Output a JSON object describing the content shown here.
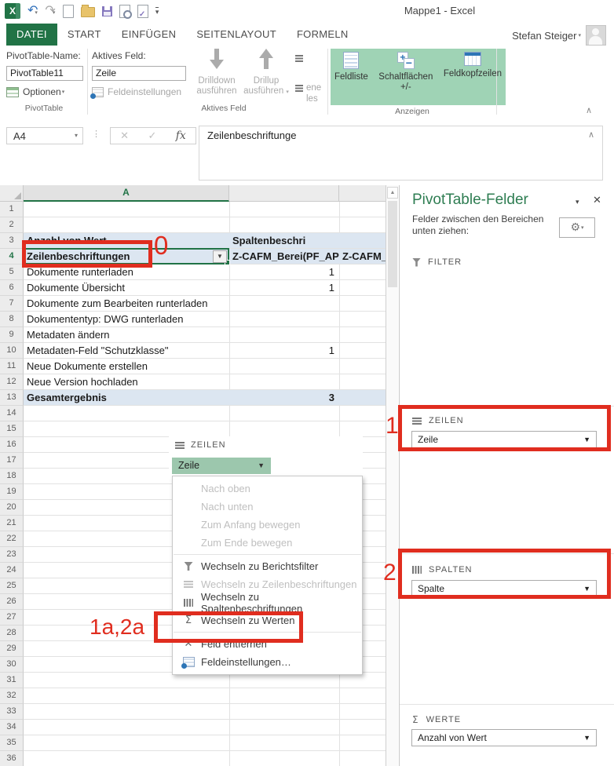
{
  "titlebar": {
    "title": "Mappe1 - Excel",
    "user": "Stefan Steiger",
    "qat_icons": [
      "excel-logo",
      "undo",
      "redo",
      "new-document",
      "open-folder",
      "save",
      "print-preview",
      "edit-document",
      "more"
    ]
  },
  "tabs": [
    {
      "label": "DATEI",
      "active": true
    },
    {
      "label": "START",
      "active": false
    },
    {
      "label": "EINFÜGEN",
      "active": false
    },
    {
      "label": "SEITENLAYOUT",
      "active": false
    },
    {
      "label": "FORMELN",
      "active": false
    }
  ],
  "ribbon": {
    "pivot": {
      "name_label": "PivotTable-Name:",
      "name_value": "PivotTable11",
      "options": "Optionen",
      "group": "PivotTable"
    },
    "active_field": {
      "label": "Aktives Feld:",
      "value": "Zeile",
      "settings": "Feldeinstellungen",
      "drilldown": "Drilldown ausführen",
      "drillup": "Drillup ausführen",
      "group": "Aktives Feld",
      "clipped_labels": [
        "ene",
        "les"
      ]
    },
    "show": {
      "buttons": [
        "Feldliste",
        "Schaltflächen +/-",
        "Feldkopfzeilen"
      ],
      "group": "Anzeigen"
    }
  },
  "formula_bar": {
    "name_box": "A4",
    "fx": "fx",
    "content": "Zeilenbeschriftunge"
  },
  "grid": {
    "column_header": "A",
    "total_rows": 36,
    "selected_row": 4,
    "shaded_rows": [
      3,
      4,
      13
    ],
    "bold_rows": [
      3,
      4,
      13
    ],
    "rows": [
      {
        "n": 3,
        "a": "Anzahl von Wert",
        "b": "Spaltenbeschri",
        "c": ""
      },
      {
        "n": 4,
        "a": "Zeilenbeschriftungen",
        "b": "Z-CAFM_Berei(PF_AP",
        "c": "Z-CAFM_"
      },
      {
        "n": 5,
        "a": "Dokumente runterladen",
        "b": "1",
        "c": ""
      },
      {
        "n": 6,
        "a": "Dokumente Übersicht",
        "b": "1",
        "c": ""
      },
      {
        "n": 7,
        "a": "Dokumente zum Bearbeiten runterladen",
        "b": "",
        "c": ""
      },
      {
        "n": 8,
        "a": "Dokumententyp: DWG runterladen",
        "b": "",
        "c": ""
      },
      {
        "n": 9,
        "a": "Metadaten ändern",
        "b": "",
        "c": ""
      },
      {
        "n": 10,
        "a": "Metadaten-Feld \"Schutzklasse\"",
        "b": "1",
        "c": ""
      },
      {
        "n": 11,
        "a": "Neue Dokumente erstellen",
        "b": "",
        "c": ""
      },
      {
        "n": 12,
        "a": "Neue Version hochladen",
        "b": "",
        "c": ""
      },
      {
        "n": 13,
        "a": "Gesamtergebnis",
        "b": "3",
        "c": ""
      }
    ]
  },
  "context_menu": {
    "header": "ZEILEN",
    "field": "Zeile",
    "items": [
      {
        "label": "Nach oben",
        "enabled": false,
        "icon": "none"
      },
      {
        "label": "Nach unten",
        "enabled": false,
        "icon": "none"
      },
      {
        "label": "Zum Anfang bewegen",
        "enabled": false,
        "icon": "none"
      },
      {
        "label": "Zum Ende bewegen",
        "enabled": false,
        "icon": "none"
      },
      {
        "sep": true
      },
      {
        "label": "Wechseln zu Berichtsfilter",
        "enabled": true,
        "icon": "filter"
      },
      {
        "label": "Wechseln zu Zeilenbeschriftungen",
        "enabled": false,
        "icon": "rows"
      },
      {
        "label": "Wechseln zu Spaltenbeschriftungen",
        "enabled": true,
        "icon": "columns"
      },
      {
        "label": "Wechseln zu Werten",
        "enabled": true,
        "icon": "sigma"
      },
      {
        "sep": true
      },
      {
        "label": "Feld entfernen",
        "enabled": true,
        "icon": "remove"
      },
      {
        "label": "Feldeinstellungen…",
        "enabled": true,
        "icon": "settings"
      }
    ]
  },
  "panel": {
    "title": "PivotTable-Felder",
    "subtitle": "Felder zwischen den Bereichen unten ziehen:",
    "filter_label": "FILTER",
    "rows_label": "ZEILEN",
    "rows_value": "Zeile",
    "cols_label": "SPALTEN",
    "cols_value": "Spalte",
    "values_label": "WERTE",
    "values_value": "Anzahl von Wert"
  },
  "annotations": {
    "cell_label": "0",
    "rows_label": "1",
    "cols_label": "2",
    "menu_label": "1a,2a"
  },
  "colors": {
    "excel_green": "#217346",
    "toggle_green": "#9FD3B5",
    "field_button_green": "#9CC7AD",
    "pivot_blue": "#DCE6F1",
    "annotation_red": "#E02D1F"
  }
}
